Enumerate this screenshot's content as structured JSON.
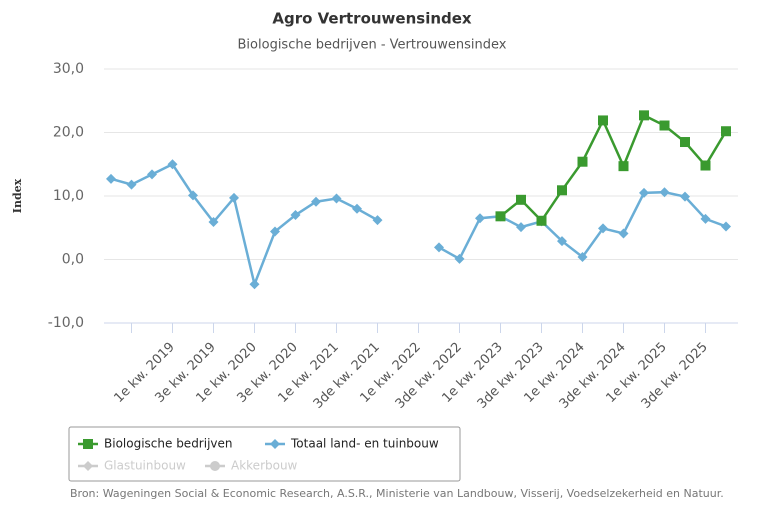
{
  "chart_data": {
    "type": "line",
    "title": "Agro Vertrouwensindex",
    "subtitle": "Biologische bedrijven - Vertrouwensindex",
    "y_label": "Index",
    "source": "Bron: Wageningen Social & Economic Research, A.S.R., Ministerie van Landbouw, Visserij, Voedselzekerheid en Natuur.",
    "categories": [
      null,
      null,
      null,
      "1e kw. 2019",
      null,
      "3e kw. 2019",
      null,
      "1e kw. 2020",
      null,
      "3e kw. 2020",
      null,
      "1e kw. 2021",
      null,
      "3de kw. 2021",
      null,
      "1e kw. 2022",
      null,
      "3de kw. 2022",
      null,
      "1e kw. 2023",
      null,
      "3de kw. 2023",
      null,
      "1e kw. 2024",
      null,
      "3de kw. 2024",
      null,
      "1e kw. 2025",
      null,
      "3de kw. 2025",
      null
    ],
    "series": [
      {
        "name": "Biologische bedrijven",
        "color": "#3a9a2f",
        "marker": "square",
        "values": [
          null,
          null,
          null,
          null,
          null,
          null,
          null,
          null,
          null,
          null,
          null,
          null,
          null,
          null,
          null,
          null,
          null,
          null,
          null,
          6.8,
          9.4,
          6.1,
          10.9,
          15.4,
          21.9,
          14.7,
          22.7,
          21.1,
          18.5,
          14.8,
          20.2
        ]
      },
      {
        "name": "Totaal land- en tuinbouw",
        "color": "#6aaed6",
        "marker": "diamond",
        "values": [
          12.7,
          11.8,
          13.4,
          15.0,
          10.1,
          5.9,
          9.7,
          -3.9,
          4.4,
          7.0,
          9.1,
          9.6,
          8.0,
          6.2,
          null,
          null,
          1.9,
          0.1,
          6.5,
          6.8,
          5.1,
          6.0,
          2.9,
          0.4,
          4.9,
          4.1,
          10.5,
          10.6,
          9.9,
          6.4,
          5.2
        ]
      },
      {
        "name": "Glastuinbouw",
        "color": "#cccccc",
        "marker": "diamond",
        "visible": false,
        "values": [
          null,
          null,
          null,
          null,
          null,
          null,
          null,
          null,
          null,
          null,
          null,
          null,
          null,
          null,
          null,
          null,
          null,
          null,
          null,
          null,
          null,
          null,
          null,
          null,
          null,
          null,
          null,
          null,
          null,
          null,
          null
        ]
      },
      {
        "name": "Akkerbouw",
        "color": "#cccccc",
        "marker": "circle",
        "visible": false,
        "values": [
          null,
          null,
          null,
          null,
          null,
          null,
          null,
          null,
          null,
          null,
          null,
          null,
          null,
          null,
          null,
          null,
          null,
          null,
          null,
          null,
          null,
          null,
          null,
          null,
          null,
          null,
          null,
          null,
          null,
          null,
          null
        ]
      }
    ],
    "ylim": [
      -10,
      30
    ],
    "yticks": [
      {
        "value": -10,
        "label": "-10,0"
      },
      {
        "value": 0,
        "label": "0,0"
      },
      {
        "value": 10,
        "label": "10,0"
      },
      {
        "value": 20,
        "label": "20,0"
      },
      {
        "value": 30,
        "label": "30,0"
      }
    ],
    "grid": true
  }
}
